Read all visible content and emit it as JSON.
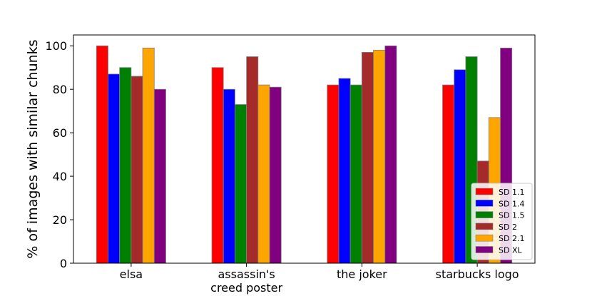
{
  "chart_data": {
    "type": "bar",
    "title": "",
    "xlabel": "",
    "ylabel": "% of images with similar chunks",
    "ylim": [
      0,
      105
    ],
    "yticks": [
      0,
      20,
      40,
      60,
      80,
      100
    ],
    "grid": false,
    "legend_position": "lower-right",
    "categories": [
      [
        "elsa"
      ],
      [
        "assassin's",
        "creed poster"
      ],
      [
        "the joker"
      ],
      [
        "starbucks logo"
      ]
    ],
    "series": [
      {
        "name": "SD 1.1",
        "color": "#ff0000",
        "values": [
          100,
          90,
          82,
          82
        ]
      },
      {
        "name": "SD 1.4",
        "color": "#0000ff",
        "values": [
          87,
          80,
          85,
          89
        ]
      },
      {
        "name": "SD 1.5",
        "color": "#008000",
        "values": [
          90,
          73,
          82,
          95
        ]
      },
      {
        "name": "SD 2",
        "color": "#a52a2a",
        "values": [
          86,
          95,
          97,
          47
        ]
      },
      {
        "name": "SD 2.1",
        "color": "#ffa500",
        "values": [
          99,
          82,
          98,
          67
        ]
      },
      {
        "name": "SD XL",
        "color": "#800080",
        "values": [
          80,
          81,
          100,
          99
        ]
      }
    ]
  }
}
